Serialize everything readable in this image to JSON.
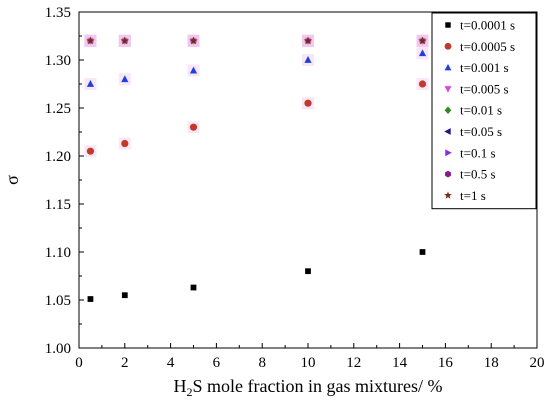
{
  "chart_data": {
    "type": "scatter",
    "xlabel_main": "H",
    "xlabel_sub": "2",
    "xlabel_rest": "S mole fraction in gas mixtures/ %",
    "ylabel": "σ",
    "xlim": [
      0,
      20
    ],
    "ylim": [
      1.0,
      1.35
    ],
    "x_ticks": [
      "0",
      "2",
      "4",
      "6",
      "8",
      "10",
      "12",
      "14",
      "16",
      "18",
      "20"
    ],
    "y_ticks": [
      "1.00",
      "1.05",
      "1.10",
      "1.15",
      "1.20",
      "1.25",
      "1.30",
      "1.35"
    ],
    "grid": false,
    "legend_position": "top-right",
    "x": [
      0.5,
      2,
      5,
      10,
      15
    ],
    "series": [
      {
        "name": "t=0.0001 s",
        "marker": "square",
        "color": "#000000",
        "values": [
          1.051,
          1.055,
          1.063,
          1.08,
          1.1
        ]
      },
      {
        "name": "t=0.0005 s",
        "marker": "circle",
        "color": "#c0392b",
        "values": [
          1.205,
          1.213,
          1.23,
          1.255,
          1.275
        ]
      },
      {
        "name": "t=0.001 s",
        "marker": "triangle-up",
        "color": "#1f3fe0",
        "values": [
          1.275,
          1.28,
          1.289,
          1.3,
          1.307
        ]
      },
      {
        "name": "t=0.005 s",
        "marker": "triangle-down",
        "color": "#e040e0",
        "values": [
          1.32,
          1.32,
          1.32,
          1.32,
          1.32
        ]
      },
      {
        "name": "t=0.01 s",
        "marker": "diamond",
        "color": "#2e8b22",
        "values": [
          1.32,
          1.32,
          1.32,
          1.32,
          1.32
        ]
      },
      {
        "name": "t=0.05 s",
        "marker": "triangle-left",
        "color": "#1a1a8a",
        "values": [
          1.32,
          1.32,
          1.32,
          1.32,
          1.32
        ]
      },
      {
        "name": "t=0.1 s",
        "marker": "triangle-right",
        "color": "#8a2be2",
        "values": [
          1.32,
          1.32,
          1.32,
          1.32,
          1.32
        ]
      },
      {
        "name": "t=0.5 s",
        "marker": "hexagon",
        "color": "#8b1a8b",
        "values": [
          1.32,
          1.32,
          1.32,
          1.32,
          1.32
        ]
      },
      {
        "name": "t=1 s",
        "marker": "star",
        "color": "#7a2a1a",
        "values": [
          1.32,
          1.32,
          1.32,
          1.32,
          1.32
        ]
      }
    ]
  }
}
